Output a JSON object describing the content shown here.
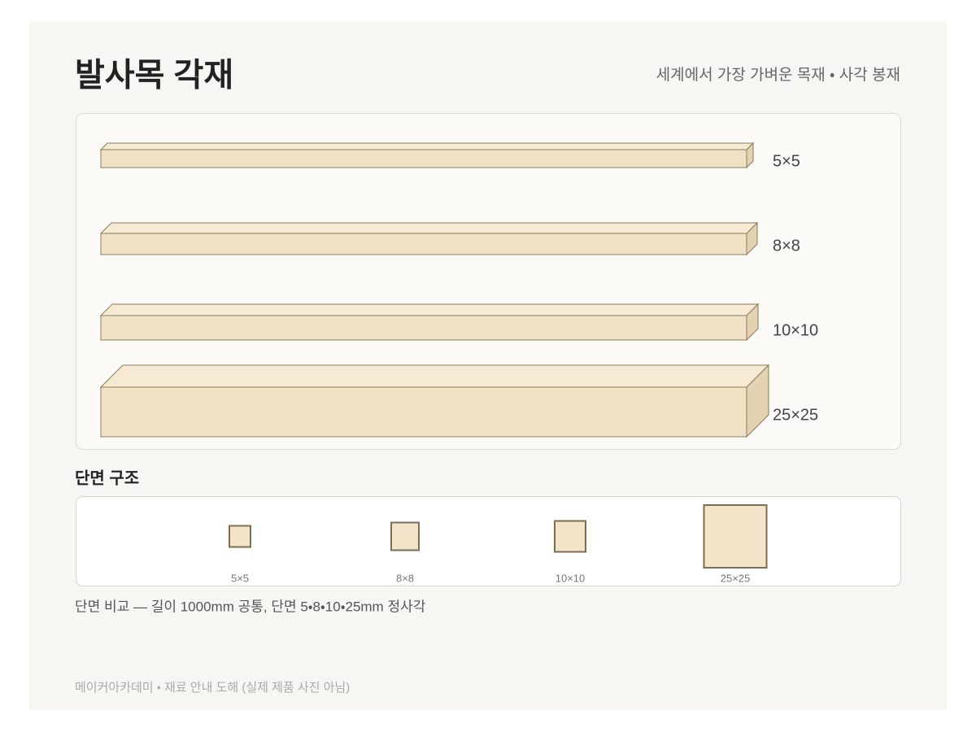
{
  "header": {
    "title": "발사목 각재",
    "subtitle": "세계에서 가장 가벼운 목재 ・ 사각 봉재"
  },
  "sticks": [
    {
      "label": "5×5"
    },
    {
      "label": "8×8"
    },
    {
      "label": "10×10"
    },
    {
      "label": "25×25"
    }
  ],
  "cross_section": {
    "title": "단면 구조",
    "items": [
      {
        "label": "5×5"
      },
      {
        "label": "8×8"
      },
      {
        "label": "10×10"
      },
      {
        "label": "25×25"
      }
    ]
  },
  "caption": "단면 비교 — 길이 1000mm 공통, 단면 5・8・10・25mm 정사각",
  "footer": "메이커아카데미 ・ 재료 안내 도해 (실제 제품 사진 아님)"
}
